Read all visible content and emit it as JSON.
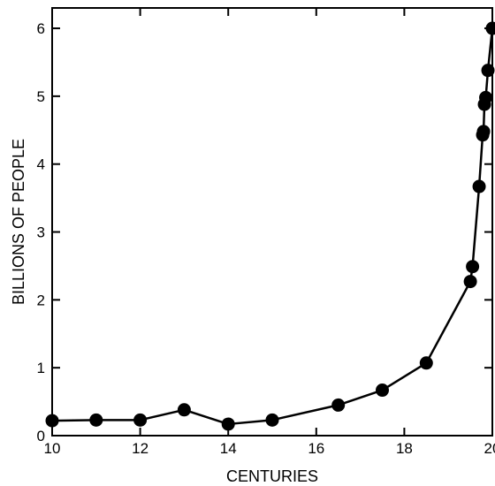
{
  "chart_data": {
    "type": "line",
    "title": "",
    "xlabel": "CENTURIES",
    "ylabel": "BILLIONS OF PEOPLE",
    "xlim": [
      10,
      20
    ],
    "ylim": [
      0,
      6.3
    ],
    "x_ticks": [
      10,
      12,
      14,
      16,
      18,
      20
    ],
    "x_tick_labels": [
      "10",
      "12",
      "14",
      "16",
      "18",
      "20"
    ],
    "y_ticks": [
      0,
      1,
      2,
      3,
      4,
      5,
      6
    ],
    "y_tick_labels": [
      "0",
      "1",
      "2",
      "3",
      "4",
      "5",
      "6"
    ],
    "grid": false,
    "legend": "none",
    "series": [
      {
        "x": [
          10,
          11,
          12,
          13,
          14,
          15,
          16.5,
          17.5,
          18.5,
          19.5,
          19.55,
          19.7,
          19.78,
          19.8,
          19.82,
          19.85,
          19.9,
          20
        ],
        "y": [
          0.22,
          0.23,
          0.23,
          0.38,
          0.17,
          0.23,
          0.45,
          0.67,
          1.07,
          2.27,
          2.49,
          3.67,
          4.43,
          4.48,
          4.88,
          4.98,
          5.38,
          6.0
        ],
        "color": "#000000"
      }
    ]
  }
}
